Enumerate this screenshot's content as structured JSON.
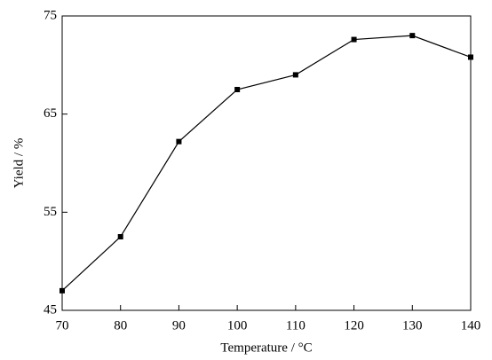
{
  "chart_data": {
    "type": "line",
    "xlabel": "Temperature / °C",
    "ylabel": "Yield / %",
    "x": [
      70,
      80,
      90,
      100,
      110,
      120,
      130,
      140
    ],
    "series": [
      {
        "color": "#000000",
        "values": [
          47.0,
          52.5,
          62.2,
          67.5,
          69.0,
          72.6,
          73.0,
          70.8
        ]
      }
    ],
    "xlim": [
      70,
      140
    ],
    "xticks": [
      70,
      80,
      90,
      100,
      110,
      120,
      130,
      140
    ],
    "ylim": [
      45,
      75
    ],
    "yticks": [
      45,
      55,
      65,
      75
    ],
    "grid": false
  }
}
